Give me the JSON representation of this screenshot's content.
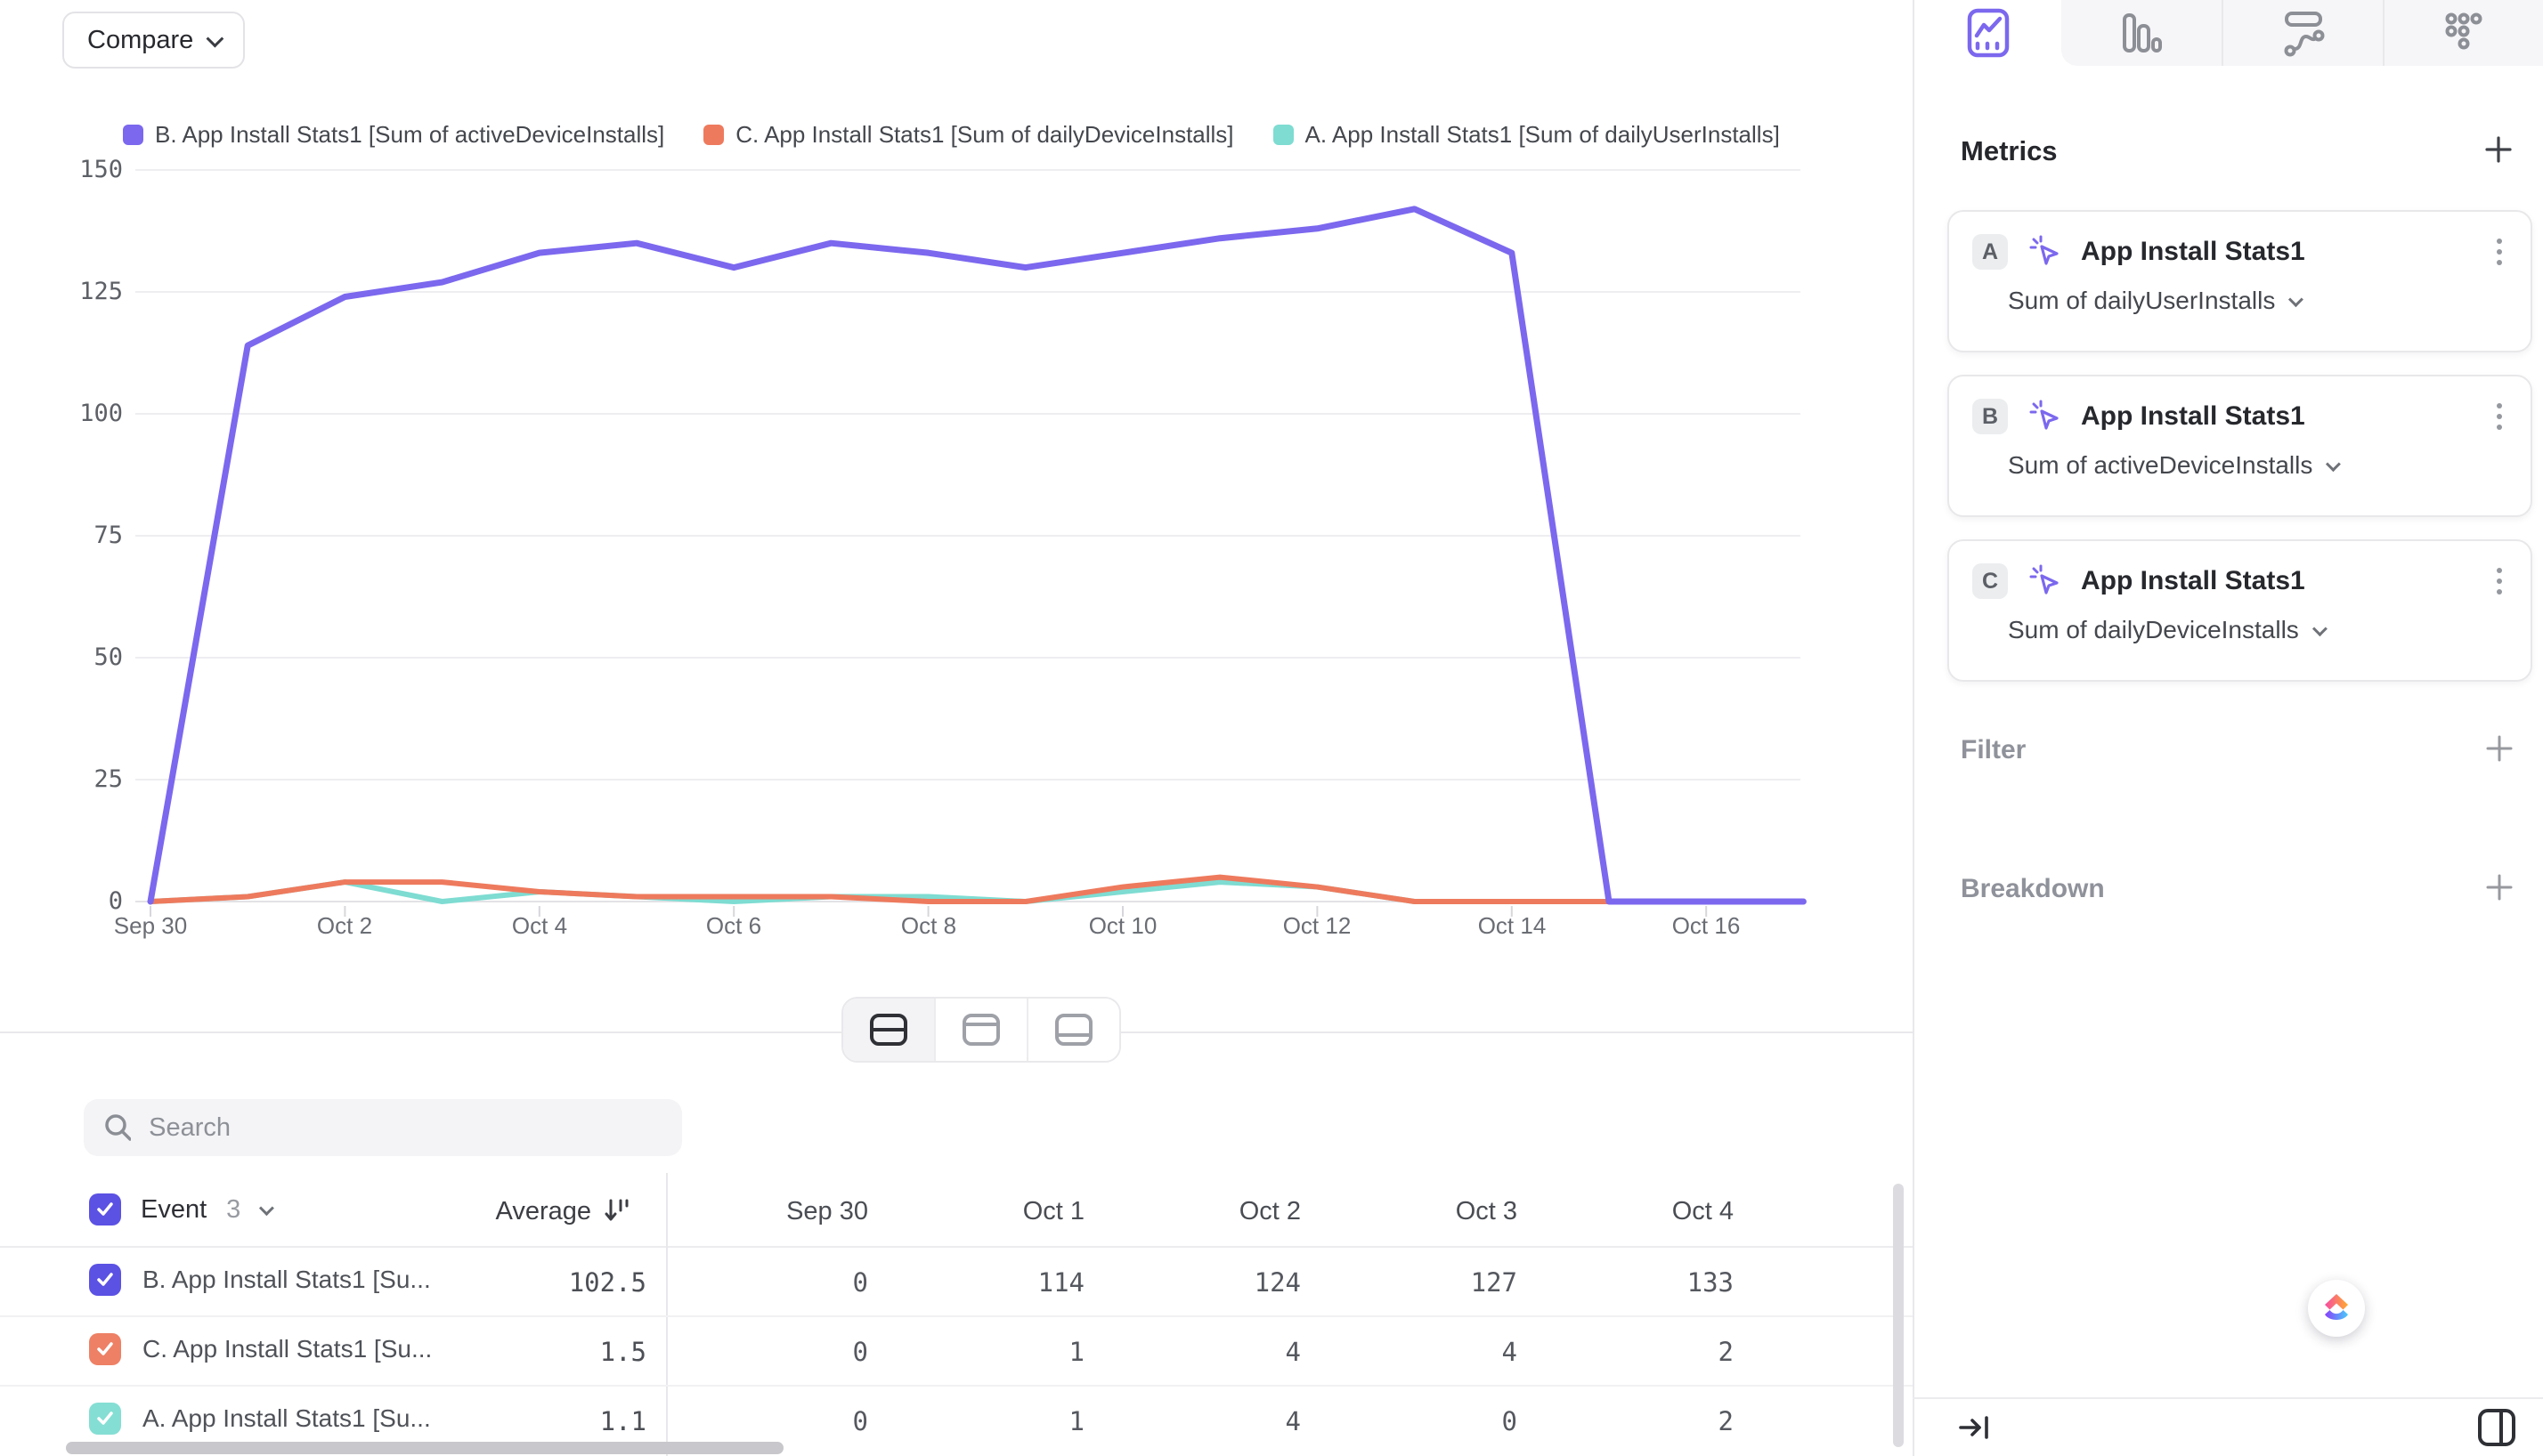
{
  "compare": {
    "label": "Compare"
  },
  "legend": [
    {
      "label": "B. App Install Stats1 [Sum of activeDeviceInstalls]",
      "color": "#7b68ee"
    },
    {
      "label": "C. App Install Stats1 [Sum of dailyDeviceInstalls]",
      "color": "#ee7a5d"
    },
    {
      "label": "A. App Install Stats1 [Sum of dailyUserInstalls]",
      "color": "#7edcd2"
    }
  ],
  "chart_data": {
    "type": "line",
    "title": "",
    "xlabel": "",
    "ylabel": "",
    "ylim": [
      0,
      150
    ],
    "grid": true,
    "legend_position": "top",
    "x": [
      "Sep 30",
      "Oct 1",
      "Oct 2",
      "Oct 3",
      "Oct 4",
      "Oct 5",
      "Oct 6",
      "Oct 7",
      "Oct 8",
      "Oct 9",
      "Oct 10",
      "Oct 11",
      "Oct 12",
      "Oct 13",
      "Oct 14",
      "Oct 15",
      "Oct 16",
      "Oct 17"
    ],
    "x_tick_labels": [
      "Sep 30",
      "Oct 2",
      "Oct 4",
      "Oct 6",
      "Oct 8",
      "Oct 10",
      "Oct 12",
      "Oct 14",
      "Oct 16"
    ],
    "y_ticks": [
      150,
      125,
      100,
      75,
      50,
      25,
      0
    ],
    "series": [
      {
        "name": "B. App Install Stats1 [Sum of activeDeviceInstalls]",
        "color": "#7b68ee",
        "values": [
          0,
          114,
          124,
          127,
          133,
          135,
          130,
          135,
          133,
          130,
          133,
          136,
          138,
          142,
          133,
          0,
          0,
          0
        ]
      },
      {
        "name": "C. App Install Stats1 [Sum of dailyDeviceInstalls]",
        "color": "#ee7a5d",
        "values": [
          0,
          1,
          4,
          4,
          2,
          1,
          1,
          1,
          0,
          0,
          3,
          5,
          3,
          0,
          0,
          0,
          0,
          0
        ]
      },
      {
        "name": "A. App Install Stats1 [Sum of dailyUserInstalls]",
        "color": "#7edcd2",
        "values": [
          0,
          1,
          4,
          0,
          2,
          1,
          0,
          1,
          1,
          0,
          2,
          4,
          3,
          0,
          0,
          0,
          0,
          0
        ]
      }
    ]
  },
  "search": {
    "placeholder": "Search"
  },
  "table": {
    "event_label": "Event",
    "event_count": "3",
    "average_label": "Average",
    "date_columns": [
      "Sep 30",
      "Oct 1",
      "Oct 2",
      "Oct 3",
      "Oct 4"
    ],
    "rows": [
      {
        "label": "B. App Install Stats1 [Su...",
        "checkbox_color": "#5b51e3",
        "average": "102.5",
        "values": [
          "0",
          "114",
          "124",
          "127",
          "133"
        ]
      },
      {
        "label": "C. App Install Stats1 [Su...",
        "checkbox_color": "#ee8065",
        "average": "1.5",
        "values": [
          "0",
          "1",
          "4",
          "4",
          "2"
        ]
      },
      {
        "label": "A. App Install Stats1 [Su...",
        "checkbox_color": "#84ded3",
        "average": "1.1",
        "values": [
          "0",
          "1",
          "4",
          "0",
          "2"
        ]
      }
    ],
    "select_all_color": "#5b51e3"
  },
  "sidebar": {
    "metrics": {
      "title": "Metrics"
    },
    "cards": [
      {
        "badge": "A",
        "title": "App Install Stats1",
        "subtitle": "Sum of dailyUserInstalls"
      },
      {
        "badge": "B",
        "title": "App Install Stats1",
        "subtitle": "Sum of activeDeviceInstalls"
      },
      {
        "badge": "C",
        "title": "App Install Stats1",
        "subtitle": "Sum of dailyDeviceInstalls"
      }
    ],
    "filter": {
      "label": "Filter"
    },
    "breakdown": {
      "label": "Breakdown"
    }
  },
  "colors": {
    "accent_purple": "#7b68ee",
    "coral": "#ee7a5d",
    "teal": "#7edcd2",
    "grid": "#eeeef1",
    "axis_text": "#6a6d74"
  }
}
